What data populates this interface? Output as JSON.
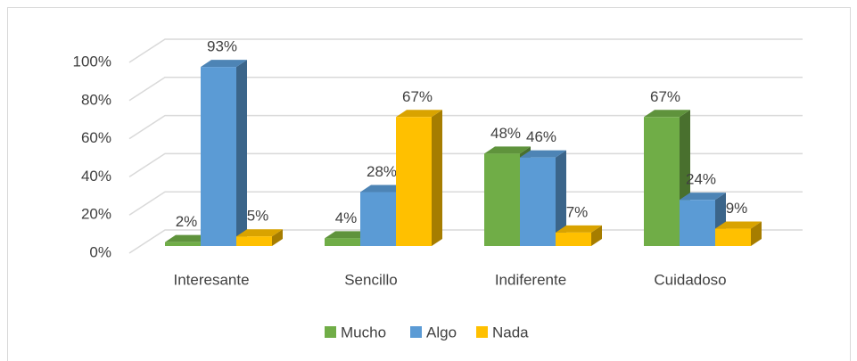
{
  "chart_data": {
    "type": "bar3d",
    "categories": [
      "Interesante",
      "Sencillo",
      "Indiferente",
      "Cuidadoso"
    ],
    "series": [
      {
        "name": "Mucho",
        "color": "#70ad47",
        "values": [
          2,
          4,
          48,
          67
        ],
        "value_labels": [
          "2%",
          "4%",
          "48%",
          "67%"
        ]
      },
      {
        "name": "Algo",
        "color": "#5b9bd5",
        "values": [
          93,
          28,
          46,
          24
        ],
        "value_labels": [
          "93%",
          "28%",
          "46%",
          "24%"
        ]
      },
      {
        "name": "Nada",
        "color": "#ffc000",
        "values": [
          5,
          67,
          7,
          9
        ],
        "value_labels": [
          "5%",
          "67%",
          "7%",
          "9%"
        ]
      }
    ],
    "ylim": [
      0,
      100
    ],
    "yticks": [
      {
        "value": 0,
        "label": "0%"
      },
      {
        "value": 20,
        "label": "20%"
      },
      {
        "value": 40,
        "label": "40%"
      },
      {
        "value": 60,
        "label": "60%"
      },
      {
        "value": 80,
        "label": "80%"
      },
      {
        "value": 100,
        "label": "100%"
      }
    ],
    "grid": true,
    "legend": "bottom"
  }
}
